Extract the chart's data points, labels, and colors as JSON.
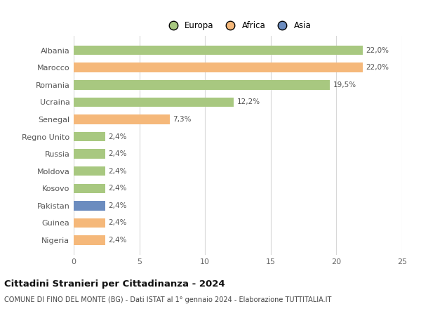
{
  "categories": [
    "Albania",
    "Marocco",
    "Romania",
    "Ucraina",
    "Senegal",
    "Regno Unito",
    "Russia",
    "Moldova",
    "Kosovo",
    "Pakistan",
    "Guinea",
    "Nigeria"
  ],
  "values": [
    22.0,
    22.0,
    19.5,
    12.2,
    7.3,
    2.4,
    2.4,
    2.4,
    2.4,
    2.4,
    2.4,
    2.4
  ],
  "labels": [
    "22,0%",
    "22,0%",
    "19,5%",
    "12,2%",
    "7,3%",
    "2,4%",
    "2,4%",
    "2,4%",
    "2,4%",
    "2,4%",
    "2,4%",
    "2,4%"
  ],
  "colors": [
    "#a8c880",
    "#f5b87a",
    "#a8c880",
    "#a8c880",
    "#f5b87a",
    "#a8c880",
    "#a8c880",
    "#a8c880",
    "#a8c880",
    "#6b8cbf",
    "#f5b87a",
    "#f5b87a"
  ],
  "legend_labels": [
    "Europa",
    "Africa",
    "Asia"
  ],
  "legend_colors": [
    "#a8c880",
    "#f5b87a",
    "#6b8cbf"
  ],
  "xlim": [
    0,
    25
  ],
  "xticks": [
    0,
    5,
    10,
    15,
    20,
    25
  ],
  "title": "Cittadini Stranieri per Cittadinanza - 2024",
  "subtitle": "COMUNE DI FINO DEL MONTE (BG) - Dati ISTAT al 1° gennaio 2024 - Elaborazione TUTTITALIA.IT",
  "bg_color": "#ffffff",
  "grid_color": "#d8d8d8",
  "bar_height": 0.55
}
